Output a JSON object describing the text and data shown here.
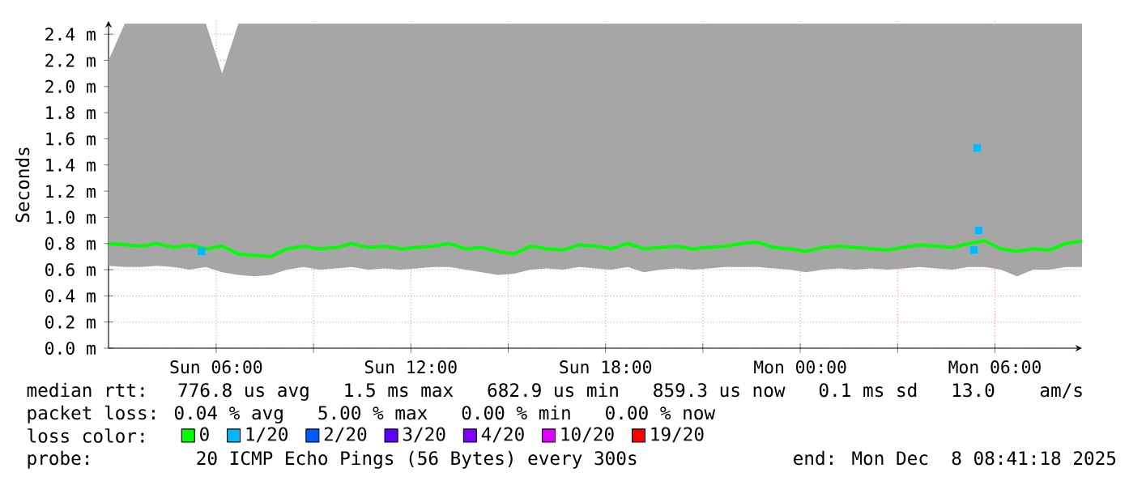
{
  "chart_data": {
    "type": "line",
    "ylabel": "Seconds",
    "xlim": [
      "2025-12-07T02:41",
      "2025-12-08T08:41"
    ],
    "xticks": [
      {
        "value": "2025-12-07T06:00",
        "label": "Sun 06:00"
      },
      {
        "value": "2025-12-07T09:00",
        "label": null
      },
      {
        "value": "2025-12-07T12:00",
        "label": "Sun 12:00"
      },
      {
        "value": "2025-12-07T15:00",
        "label": null
      },
      {
        "value": "2025-12-07T18:00",
        "label": "Sun 18:00"
      },
      {
        "value": "2025-12-07T21:00",
        "label": null
      },
      {
        "value": "2025-12-08T00:00",
        "label": "Mon 00:00"
      },
      {
        "value": "2025-12-08T03:00",
        "label": null
      },
      {
        "value": "2025-12-08T06:00",
        "label": "Mon 06:00"
      }
    ],
    "ylim": [
      0,
      2.5
    ],
    "yticks": [
      {
        "value": 0,
        "label": "0.0 m"
      },
      {
        "value": 0.2,
        "label": "0.2 m"
      },
      {
        "value": 0.4,
        "label": "0.4 m"
      },
      {
        "value": 0.6,
        "label": "0.6 m"
      },
      {
        "value": 0.8,
        "label": "0.8 m"
      },
      {
        "value": 1.0,
        "label": "1.0 m"
      },
      {
        "value": 1.2,
        "label": "1.2 m"
      },
      {
        "value": 1.4,
        "label": "1.4 m"
      },
      {
        "value": 1.6,
        "label": "1.6 m"
      },
      {
        "value": 1.8,
        "label": "1.8 m"
      },
      {
        "value": 2.0,
        "label": "2.0 m"
      },
      {
        "value": 2.2,
        "label": "2.2 m"
      },
      {
        "value": 2.4,
        "label": "2.4 m"
      }
    ],
    "grid": true,
    "legend": "bottom",
    "legend_title": "loss color:",
    "x": [
      "2025-12-07T02:41",
      "2025-12-07T03:11",
      "2025-12-07T03:41",
      "2025-12-07T04:11",
      "2025-12-07T04:41",
      "2025-12-07T05:11",
      "2025-12-07T05:41",
      "2025-12-07T06:11",
      "2025-12-07T06:41",
      "2025-12-07T07:11",
      "2025-12-07T07:41",
      "2025-12-07T08:11",
      "2025-12-07T08:41",
      "2025-12-07T09:11",
      "2025-12-07T09:41",
      "2025-12-07T10:11",
      "2025-12-07T10:41",
      "2025-12-07T11:11",
      "2025-12-07T11:41",
      "2025-12-07T12:11",
      "2025-12-07T12:41",
      "2025-12-07T13:11",
      "2025-12-07T13:41",
      "2025-12-07T14:11",
      "2025-12-07T14:41",
      "2025-12-07T15:11",
      "2025-12-07T15:41",
      "2025-12-07T16:11",
      "2025-12-07T16:41",
      "2025-12-07T17:11",
      "2025-12-07T17:41",
      "2025-12-07T18:11",
      "2025-12-07T18:41",
      "2025-12-07T19:11",
      "2025-12-07T19:41",
      "2025-12-07T20:11",
      "2025-12-07T20:41",
      "2025-12-07T21:11",
      "2025-12-07T21:41",
      "2025-12-07T22:11",
      "2025-12-07T22:41",
      "2025-12-07T23:11",
      "2025-12-07T23:41",
      "2025-12-08T00:11",
      "2025-12-08T00:41",
      "2025-12-08T01:11",
      "2025-12-08T01:41",
      "2025-12-08T02:11",
      "2025-12-08T02:41",
      "2025-12-08T03:11",
      "2025-12-08T03:41",
      "2025-12-08T04:11",
      "2025-12-08T04:41",
      "2025-12-08T05:11",
      "2025-12-08T05:41",
      "2025-12-08T06:11",
      "2025-12-08T06:41",
      "2025-12-08T07:11",
      "2025-12-08T07:41",
      "2025-12-08T08:11",
      "2025-12-08T08:41"
    ],
    "series": [
      {
        "name": "0",
        "color": "#00ff00",
        "values": [
          0.8,
          0.79,
          0.78,
          0.8,
          0.77,
          0.79,
          0.76,
          0.78,
          0.72,
          0.71,
          0.7,
          0.76,
          0.78,
          0.76,
          0.77,
          0.8,
          0.77,
          0.78,
          0.76,
          0.77,
          0.78,
          0.8,
          0.76,
          0.77,
          0.74,
          0.72,
          0.78,
          0.76,
          0.75,
          0.79,
          0.78,
          0.76,
          0.8,
          0.76,
          0.77,
          0.78,
          0.76,
          0.77,
          0.78,
          0.8,
          0.81,
          0.77,
          0.76,
          0.74,
          0.77,
          0.78,
          0.77,
          0.76,
          0.75,
          0.77,
          0.79,
          0.78,
          0.77,
          0.8,
          0.82,
          0.76,
          0.74,
          0.76,
          0.75,
          0.8,
          0.82
        ],
        "lower": [
          0.63,
          0.62,
          0.62,
          0.63,
          0.62,
          0.6,
          0.62,
          0.58,
          0.56,
          0.55,
          0.56,
          0.6,
          0.62,
          0.6,
          0.61,
          0.62,
          0.6,
          0.61,
          0.6,
          0.61,
          0.62,
          0.62,
          0.6,
          0.58,
          0.56,
          0.57,
          0.6,
          0.61,
          0.6,
          0.62,
          0.61,
          0.6,
          0.62,
          0.58,
          0.6,
          0.61,
          0.6,
          0.61,
          0.62,
          0.62,
          0.62,
          0.61,
          0.6,
          0.58,
          0.6,
          0.61,
          0.6,
          0.61,
          0.6,
          0.61,
          0.62,
          0.61,
          0.6,
          0.62,
          0.62,
          0.6,
          0.55,
          0.6,
          0.6,
          0.62,
          0.62
        ],
        "upper": [
          2.2,
          2.48,
          2.48,
          2.48,
          2.48,
          2.48,
          2.48,
          2.1,
          2.48,
          2.48,
          2.48,
          2.48,
          2.48,
          2.48,
          2.48,
          2.48,
          2.48,
          2.48,
          2.48,
          2.48,
          2.48,
          2.48,
          2.48,
          2.48,
          2.48,
          2.48,
          2.48,
          2.48,
          2.48,
          2.48,
          2.48,
          2.48,
          2.48,
          2.48,
          2.48,
          2.48,
          2.48,
          2.48,
          2.48,
          2.48,
          2.48,
          2.48,
          2.48,
          2.48,
          2.48,
          2.48,
          2.48,
          2.48,
          2.48,
          2.48,
          2.48,
          2.48,
          2.48,
          2.48,
          2.48,
          2.48,
          2.48,
          2.48,
          2.48,
          2.48,
          2.48
        ]
      },
      {
        "name": "1/20",
        "type": "scatter",
        "marker": "square",
        "color": "#00b8ff",
        "x": [
          "2025-12-07T05:33",
          "2025-12-08T05:21",
          "2025-12-08T05:27",
          "2025-12-08T05:30"
        ],
        "values": [
          0.74,
          0.75,
          1.53,
          0.9
        ]
      },
      {
        "name": "2/20",
        "type": "scatter",
        "marker": "square",
        "color": "#0059ff",
        "values": [
          null,
          null,
          null,
          null,
          null,
          null,
          null,
          null,
          null,
          null,
          null,
          null,
          null,
          null,
          null,
          null,
          null,
          null,
          null,
          null,
          null,
          null,
          null,
          null,
          null,
          null,
          null,
          null,
          null,
          null,
          null,
          null,
          null,
          null,
          null,
          null,
          null,
          null,
          null,
          null,
          null,
          null,
          null,
          null,
          null,
          null,
          null,
          null,
          null,
          null,
          null,
          null,
          null,
          null,
          null,
          null,
          null,
          null,
          null,
          null,
          null
        ]
      },
      {
        "name": "3/20",
        "type": "scatter",
        "marker": "square",
        "color": "#5e00ff",
        "values": [
          null,
          null,
          null,
          null,
          null,
          null,
          null,
          null,
          null,
          null,
          null,
          null,
          null,
          null,
          null,
          null,
          null,
          null,
          null,
          null,
          null,
          null,
          null,
          null,
          null,
          null,
          null,
          null,
          null,
          null,
          null,
          null,
          null,
          null,
          null,
          null,
          null,
          null,
          null,
          null,
          null,
          null,
          null,
          null,
          null,
          null,
          null,
          null,
          null,
          null,
          null,
          null,
          null,
          null,
          null,
          null,
          null,
          null,
          null,
          null,
          null
        ]
      },
      {
        "name": "4/20",
        "type": "scatter",
        "marker": "square",
        "color": "#7e00ff",
        "values": [
          null,
          null,
          null,
          null,
          null,
          null,
          null,
          null,
          null,
          null,
          null,
          null,
          null,
          null,
          null,
          null,
          null,
          null,
          null,
          null,
          null,
          null,
          null,
          null,
          null,
          null,
          null,
          null,
          null,
          null,
          null,
          null,
          null,
          null,
          null,
          null,
          null,
          null,
          null,
          null,
          null,
          null,
          null,
          null,
          null,
          null,
          null,
          null,
          null,
          null,
          null,
          null,
          null,
          null,
          null,
          null,
          null,
          null,
          null,
          null,
          null
        ]
      },
      {
        "name": "10/20",
        "type": "scatter",
        "marker": "square",
        "color": "#dd00ff",
        "values": [
          null,
          null,
          null,
          null,
          null,
          null,
          null,
          null,
          null,
          null,
          null,
          null,
          null,
          null,
          null,
          null,
          null,
          null,
          null,
          null,
          null,
          null,
          null,
          null,
          null,
          null,
          null,
          null,
          null,
          null,
          null,
          null,
          null,
          null,
          null,
          null,
          null,
          null,
          null,
          null,
          null,
          null,
          null,
          null,
          null,
          null,
          null,
          null,
          null,
          null,
          null,
          null,
          null,
          null,
          null,
          null,
          null,
          null,
          null,
          null,
          null
        ]
      },
      {
        "name": "19/20",
        "type": "scatter",
        "marker": "square",
        "color": "#ff0000",
        "values": [
          null,
          null,
          null,
          null,
          null,
          null,
          null,
          null,
          null,
          null,
          null,
          null,
          null,
          null,
          null,
          null,
          null,
          null,
          null,
          null,
          null,
          null,
          null,
          null,
          null,
          null,
          null,
          null,
          null,
          null,
          null,
          null,
          null,
          null,
          null,
          null,
          null,
          null,
          null,
          null,
          null,
          null,
          null,
          null,
          null,
          null,
          null,
          null,
          null,
          null,
          null,
          null,
          null,
          null,
          null,
          null,
          null,
          null,
          null,
          null,
          null
        ]
      }
    ],
    "annotations": [
      "median rtt:  776.8 us avg   1.5 ms max   682.9 us min   859.3 us now   0.1 ms sd   13.0    am/s",
      "packet loss: 0.04 % avg   5.00 % max   0.00 % min   0.00 % now",
      "probe:       20 ICMP Echo Pings (56 Bytes) every 300s              end: Mon Dec  8 08:41:18 2025"
    ]
  }
}
